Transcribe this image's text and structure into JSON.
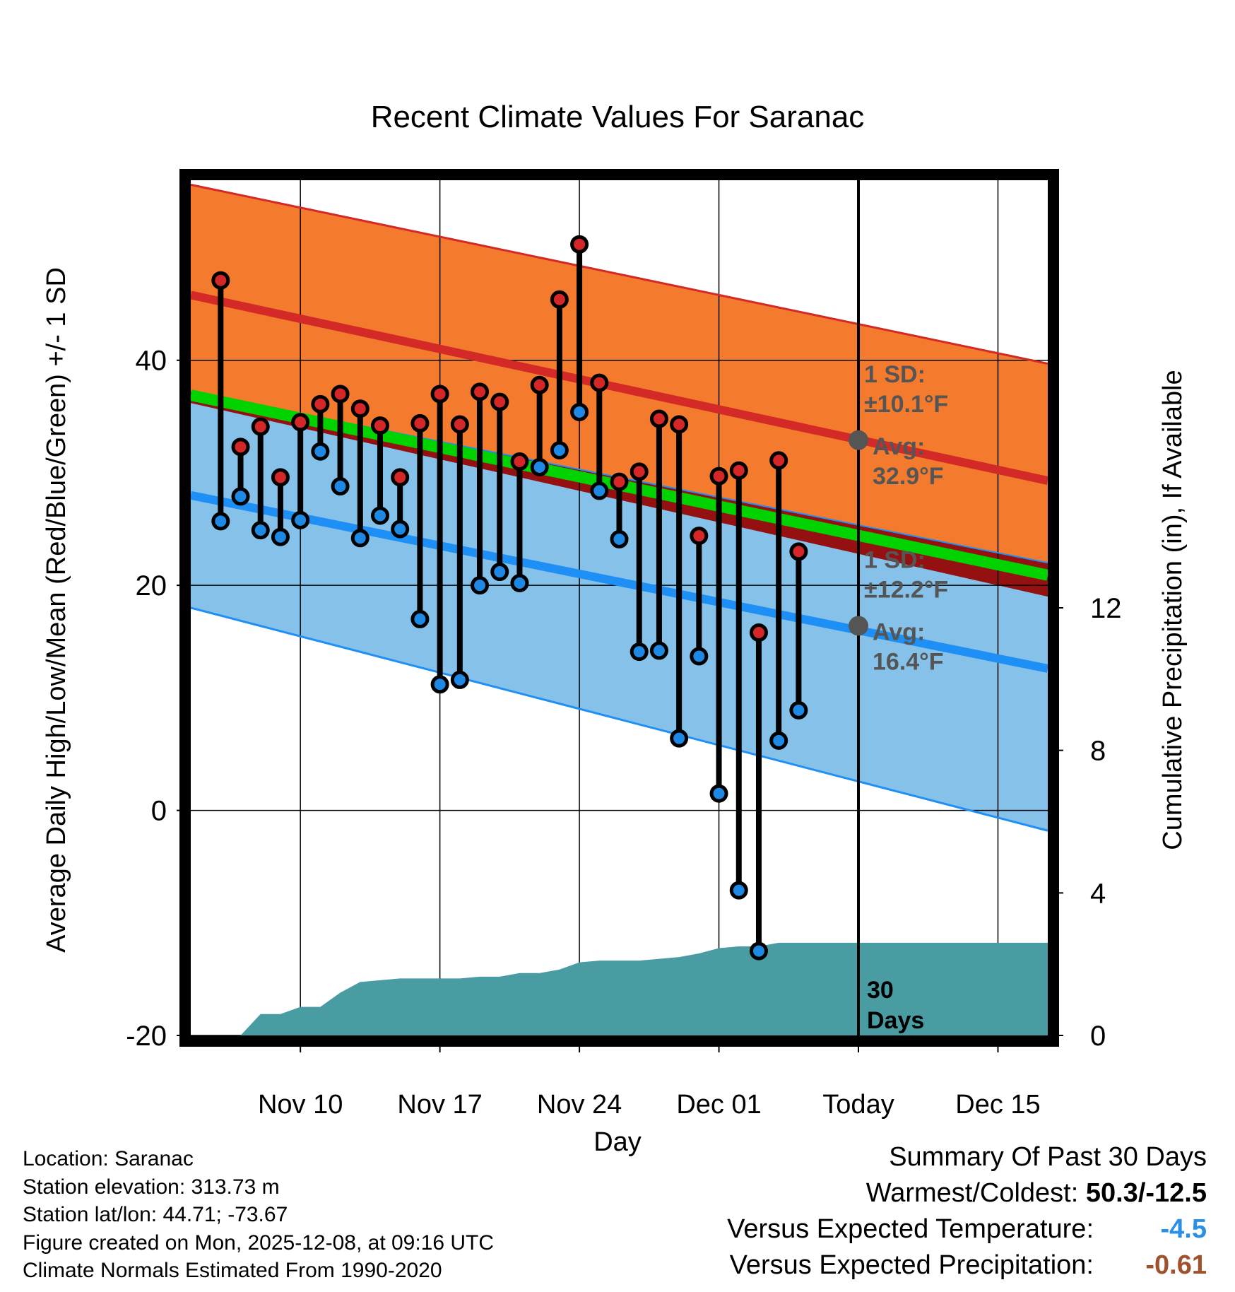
{
  "chart_data": {
    "type": "line",
    "title": "Recent Climate Values For Saranac",
    "xlabel": "Day",
    "ylabel_left": "Average Daily High/Low/Mean (Red/Blue/Green) +/- 1 SD",
    "ylabel_right": "Cumulative Precipitation (in), If Available",
    "ylim_left": [
      -20,
      56
    ],
    "ylim_right": [
      0,
      24
    ],
    "yticks_left": [
      -20,
      0,
      20,
      40
    ],
    "yticks_right": [
      0,
      4,
      8,
      12
    ],
    "xlim_days": [
      -33.5,
      9.5
    ],
    "xticks": [
      {
        "day": -28,
        "label": "Nov 10"
      },
      {
        "day": -21,
        "label": "Nov 17"
      },
      {
        "day": -14,
        "label": "Nov 24"
      },
      {
        "day": -7,
        "label": "Dec 01"
      },
      {
        "day": 0,
        "label": "Today"
      },
      {
        "day": 7,
        "label": "Dec 15"
      }
    ],
    "today_day": 0,
    "normals": {
      "high_avg_start": 45.8,
      "high_avg_end": 29.3,
      "high_sd_upper_start": 55.6,
      "high_sd_upper_end": 39.7,
      "high_sd_lower_start": 36.2,
      "high_sd_lower_end": 19.0,
      "low_avg_start": 28.0,
      "low_avg_end": 12.6,
      "low_sd_upper_start": 37.2,
      "low_sd_upper_end": 22.0,
      "low_sd_lower_start": 18.0,
      "low_sd_lower_end": -1.8,
      "mean_start": 36.9,
      "mean_end": 20.9
    },
    "high_annotation": {
      "line1": "1 SD:",
      "line2": "±10.1°F",
      "line3": "Avg:",
      "line4": "32.9°F",
      "value": 32.9
    },
    "low_annotation": {
      "line1": "1 SD:",
      "line2": "±12.2°F",
      "line3": "Avg:",
      "line4": "16.4°F",
      "value": 16.4
    },
    "days_label": {
      "line1": "30",
      "line2": "Days"
    },
    "series": [
      {
        "name": "High",
        "color": "#d62728",
        "values": [
          47.1,
          32.3,
          34.1,
          29.6,
          34.5,
          36.1,
          37.0,
          35.7,
          34.2,
          29.6,
          34.4,
          37.0,
          34.3,
          37.2,
          36.3,
          31.0,
          37.8,
          45.4,
          50.3,
          38.0,
          29.2,
          30.1,
          34.8,
          34.3,
          24.4,
          29.7,
          30.2,
          15.8,
          31.1,
          23.0
        ]
      },
      {
        "name": "Low",
        "color": "#1e88e5",
        "values": [
          25.7,
          27.9,
          24.9,
          24.3,
          25.8,
          31.9,
          28.8,
          24.2,
          26.2,
          25.0,
          17.0,
          11.2,
          11.6,
          20.0,
          21.2,
          20.2,
          30.5,
          32.0,
          35.4,
          28.4,
          24.1,
          14.1,
          14.2,
          6.4,
          13.7,
          1.5,
          -7.1,
          -12.5,
          6.2,
          8.9
        ]
      }
    ],
    "series_days": [
      -32,
      -31,
      -30,
      -29,
      -28,
      -27,
      -26,
      -25,
      -24,
      -23,
      -22,
      -21,
      -20,
      -19,
      -18,
      -17,
      -16,
      -15,
      -14,
      -13,
      -12,
      -11,
      -10,
      -9,
      -8,
      -7,
      -6,
      -5,
      -4,
      -3
    ],
    "precip": {
      "days": [
        -33.5,
        -32,
        -31,
        -30,
        -29,
        -28,
        -27,
        -26,
        -25,
        -24,
        -23,
        -22,
        -21,
        -20,
        -19,
        -18,
        -17,
        -16,
        -15,
        -14,
        -13,
        -12,
        -11,
        -10,
        -9,
        -8,
        -7,
        -6,
        -5,
        -4,
        -3,
        -2,
        -1,
        0,
        9.5
      ],
      "values": [
        0,
        0,
        0,
        0.6,
        0.6,
        0.8,
        0.8,
        1.2,
        1.5,
        1.55,
        1.6,
        1.6,
        1.6,
        1.6,
        1.65,
        1.65,
        1.75,
        1.75,
        1.85,
        2.05,
        2.1,
        2.1,
        2.1,
        2.15,
        2.2,
        2.3,
        2.45,
        2.5,
        2.5,
        2.6,
        2.6,
        2.6,
        2.6,
        2.6,
        2.6
      ]
    }
  },
  "footer": {
    "location": "Location: Saranac",
    "elevation": "Station elevation: 313.73 m",
    "latlon": "Station lat/lon: 44.71; -73.67",
    "created": "Figure created on Mon, 2025-12-08, at 09:16 UTC",
    "normals_note": "Climate Normals Estimated From 1990-2020"
  },
  "summary": {
    "title": "Summary Of Past 30 Days",
    "warm_cold_label": "Warmest/Coldest:",
    "warm_cold_value": "50.3/-12.5",
    "temp_label": "Versus Expected Temperature:",
    "temp_value": "-4.5",
    "temp_color": "#2a8fe6",
    "precip_label": "Versus Expected Precipitation:",
    "precip_value": "-0.61",
    "precip_color": "#a0522d"
  },
  "colors": {
    "high_band": "#f47a2e",
    "high_line": "#d42a27",
    "low_band": "#85c1e8",
    "low_line": "#1e8ff5",
    "mean_line": "#00d300",
    "overlap": "#951010",
    "precip": "#4a9ca3",
    "annotation": "#555555"
  }
}
